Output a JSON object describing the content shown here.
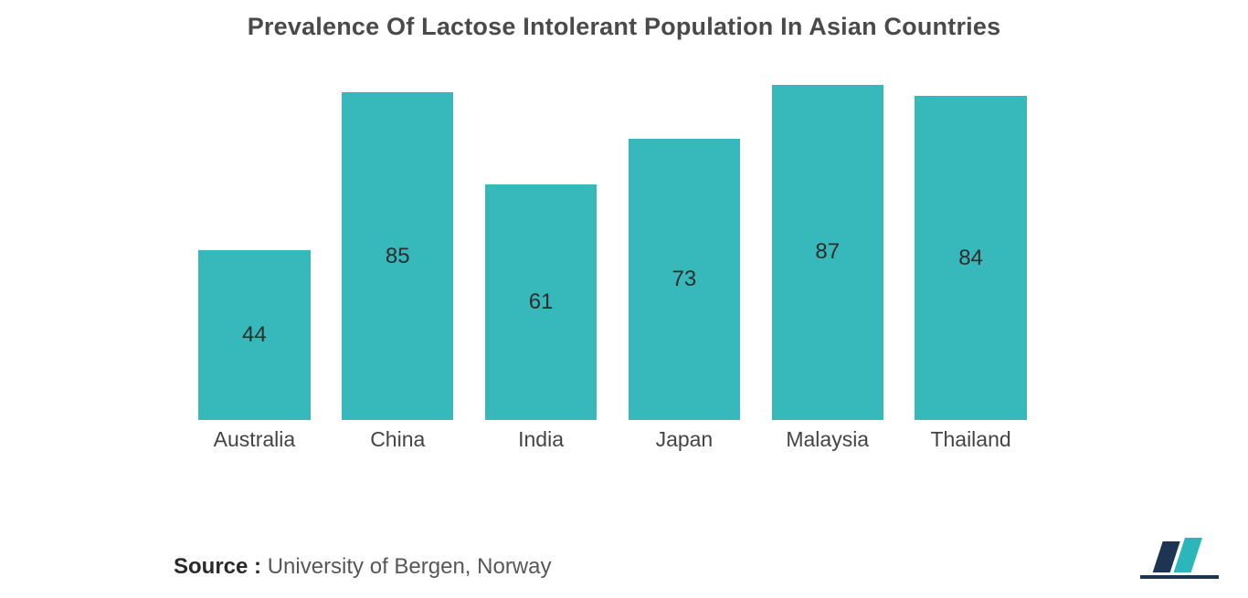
{
  "chart": {
    "type": "bar",
    "title": "Prevalence Of Lactose Intolerant Population In Asian Countries",
    "title_fontsize": 27,
    "title_color": "#4a4a4a",
    "background_color": "#ffffff",
    "bar_color": "#37b8bb",
    "value_label_color": "#2d2d2d",
    "value_label_fontsize": 24,
    "x_label_color": "#444444",
    "x_label_fontsize": 23,
    "y_max": 90,
    "bar_width_ratio": 0.78,
    "categories": [
      "Australia",
      "China",
      "India",
      "Japan",
      "Malaysia",
      "Thailand"
    ],
    "values": [
      44,
      85,
      61,
      73,
      87,
      84
    ]
  },
  "source": {
    "lead": "Source :",
    "text": "University of Bergen, Norway",
    "lead_color": "#2a2a2a",
    "text_color": "#575757",
    "fontsize": 24
  },
  "logo": {
    "bar1_color": "#1d3552",
    "bar2_color": "#2bb6bb",
    "underline_color": "#1d3552"
  }
}
